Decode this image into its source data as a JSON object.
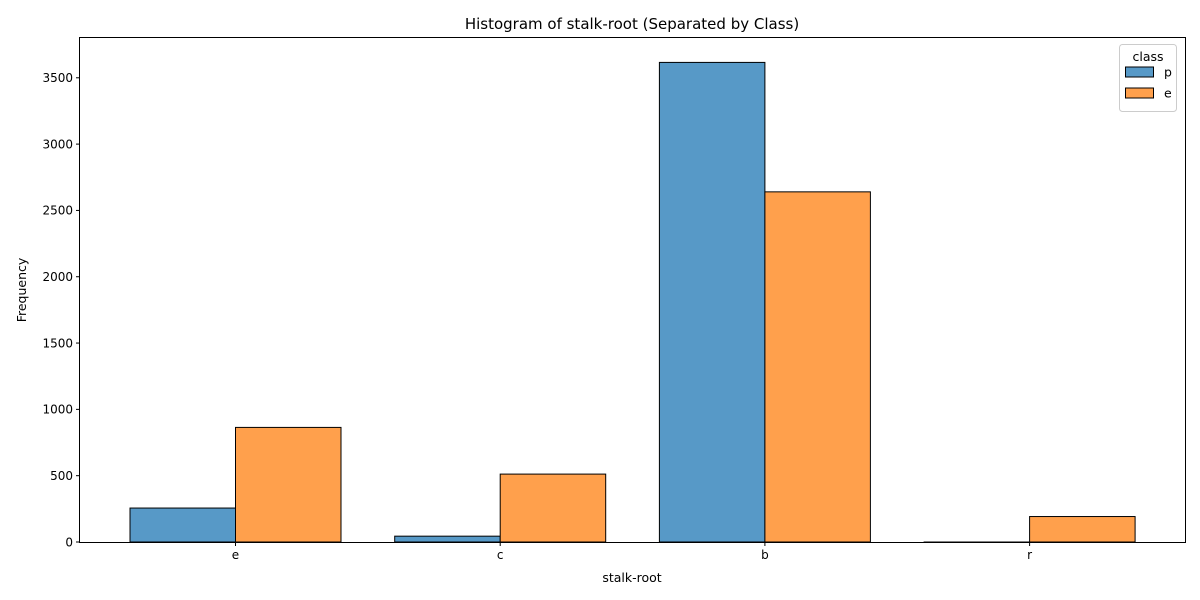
{
  "chart_data": {
    "type": "bar",
    "title": "Histogram of stalk-root (Separated by Class)",
    "xlabel": "stalk-root",
    "ylabel": "Frequency",
    "categories": [
      "e",
      "c",
      "b",
      "r"
    ],
    "ylim": [
      0,
      3800
    ],
    "yticks": [
      0,
      500,
      1000,
      1500,
      2000,
      2500,
      3000,
      3500
    ],
    "legend": {
      "title": "class",
      "position": "top-right"
    },
    "grid": false,
    "series": [
      {
        "name": "p",
        "color": "#5799c7",
        "values": [
          256,
          44,
          3616,
          0
        ]
      },
      {
        "name": "e",
        "color": "#ffa04c",
        "values": [
          864,
          512,
          2640,
          192
        ]
      }
    ]
  }
}
